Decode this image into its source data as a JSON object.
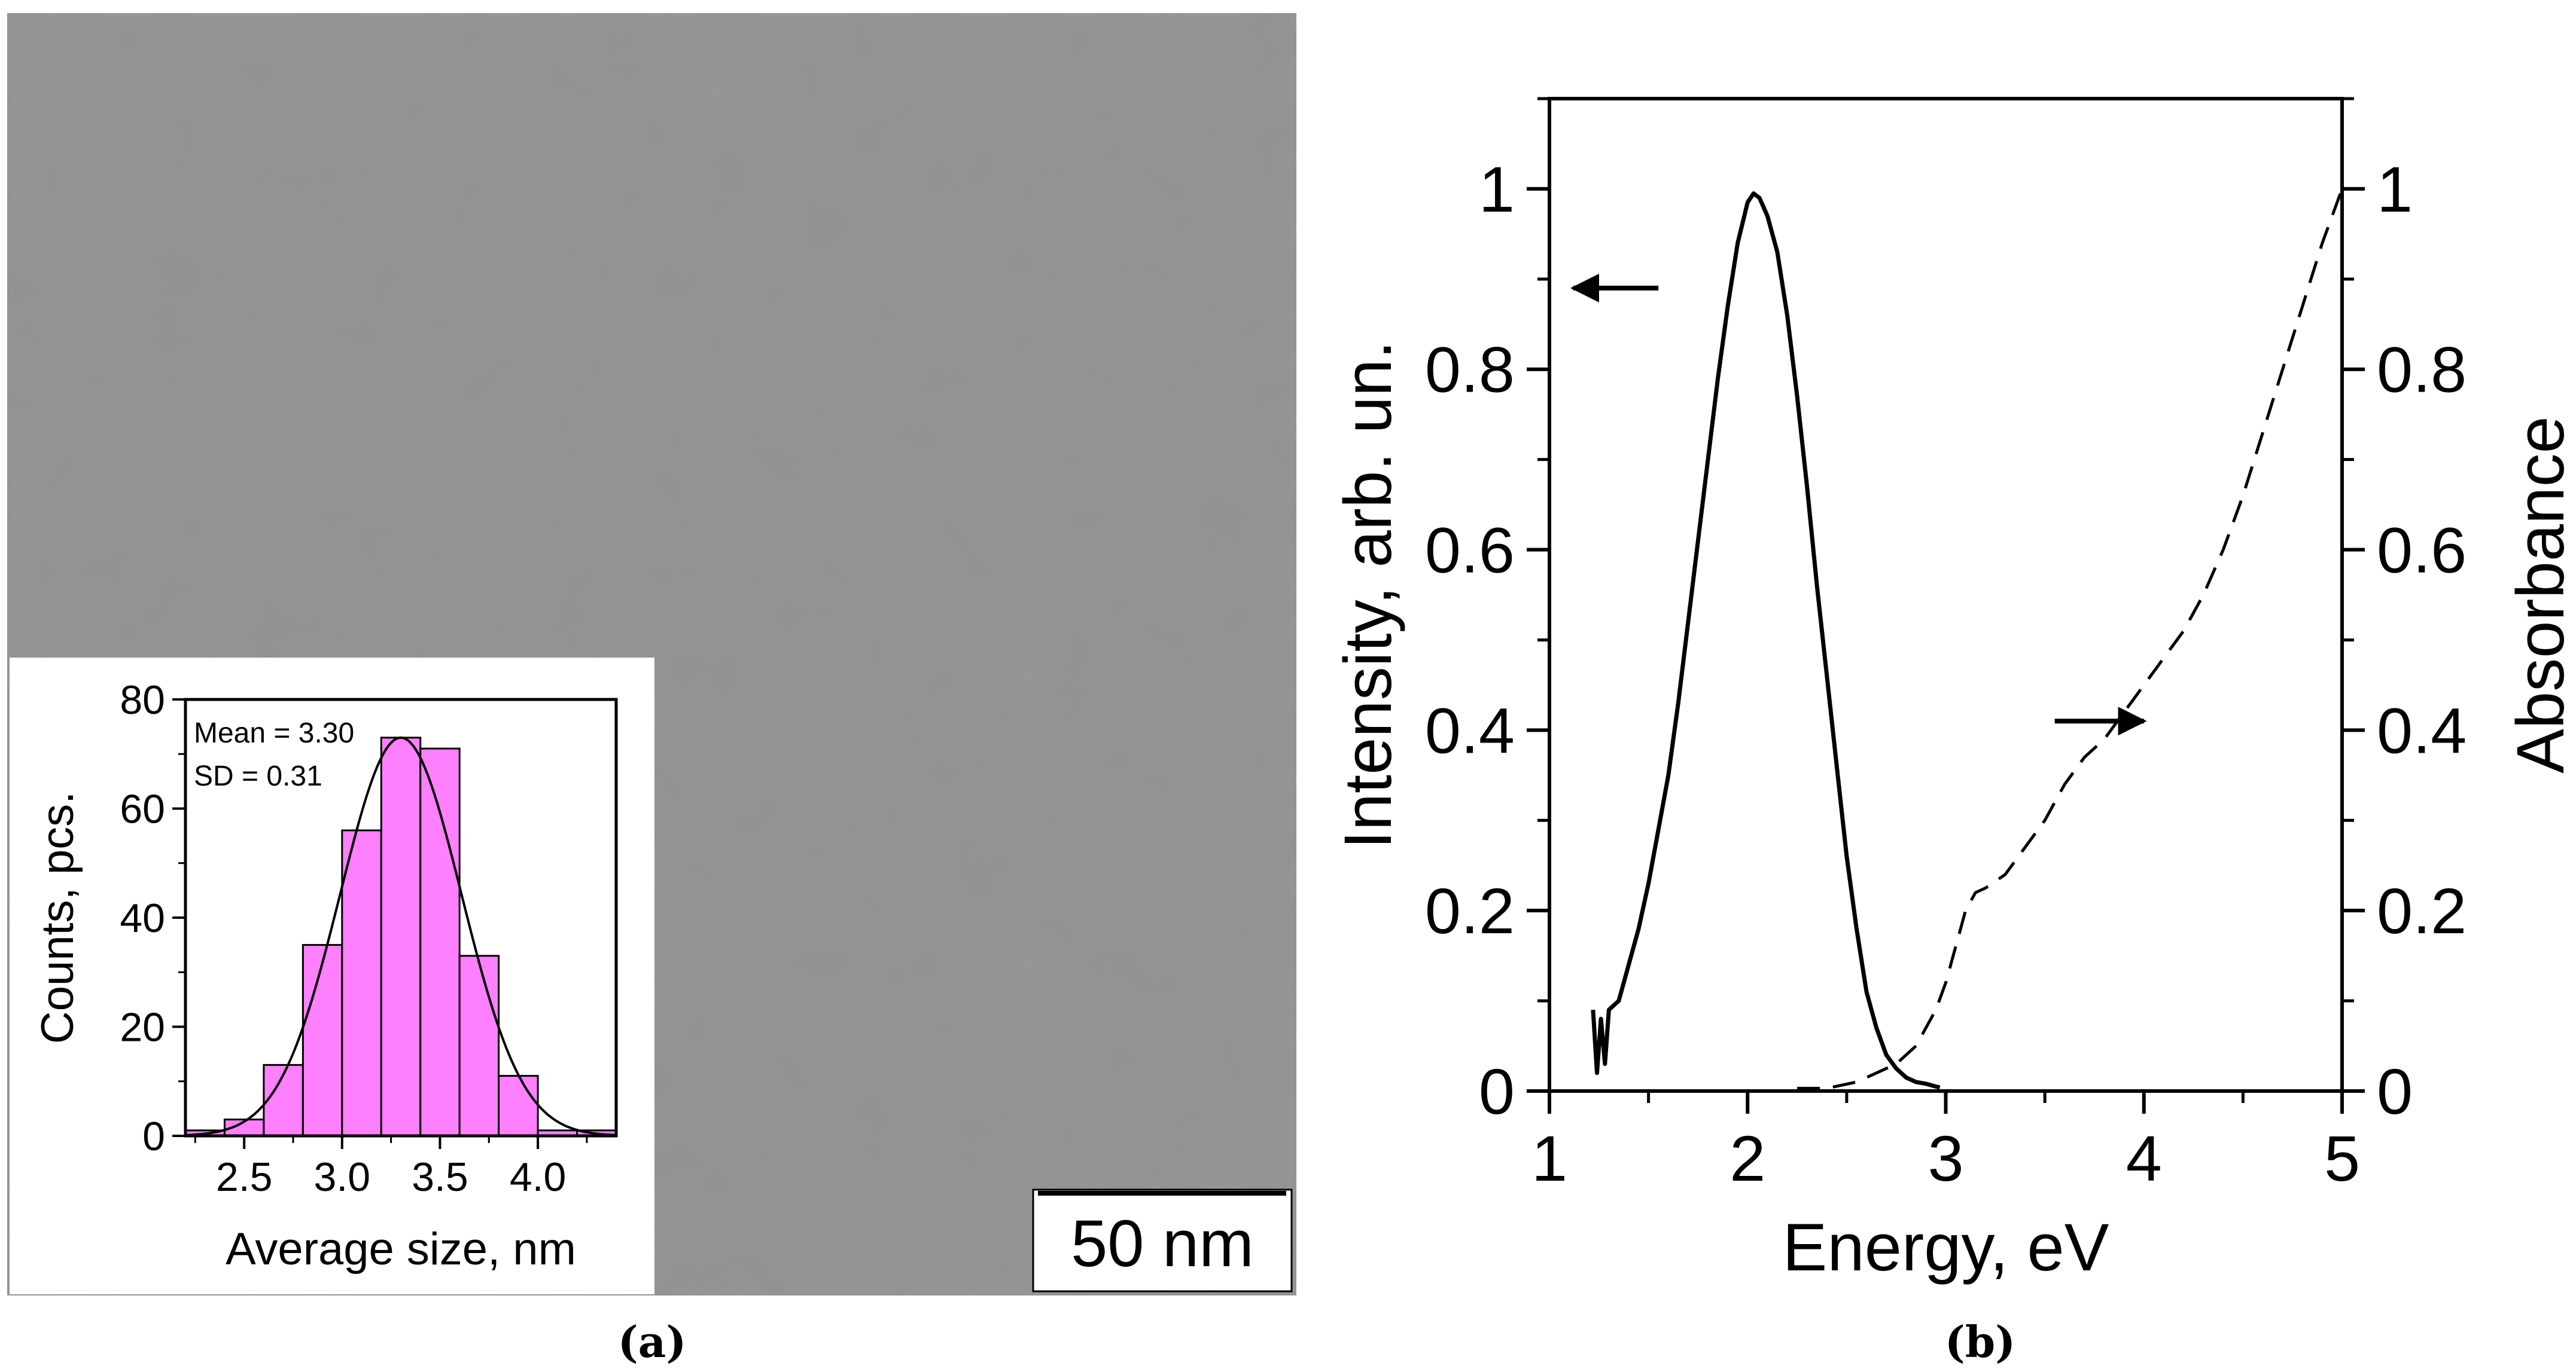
{
  "panels": {
    "a_caption": "(a)",
    "b_caption": "(b)"
  },
  "micrograph": {
    "scale_bar_label": "50 nm"
  },
  "chart_data": [
    {
      "type": "bar",
      "xlabel": "Average size, nm",
      "ylabel": "Counts, pcs.",
      "annotation": [
        "Mean = 3.30",
        "SD = 0.31"
      ],
      "bar_color": "#ff80ff",
      "bin_width": 0.2,
      "bins": [
        {
          "x": 2.3,
          "count": 1
        },
        {
          "x": 2.5,
          "count": 3
        },
        {
          "x": 2.7,
          "count": 13
        },
        {
          "x": 2.9,
          "count": 35
        },
        {
          "x": 3.1,
          "count": 56
        },
        {
          "x": 3.3,
          "count": 73
        },
        {
          "x": 3.5,
          "count": 71
        },
        {
          "x": 3.7,
          "count": 33
        },
        {
          "x": 3.9,
          "count": 11
        },
        {
          "x": 4.1,
          "count": 1
        },
        {
          "x": 4.3,
          "count": 1
        }
      ],
      "fit": {
        "type": "gaussian",
        "mean": 3.3,
        "sd": 0.31,
        "peak": 73
      },
      "xlim": [
        2.2,
        4.4
      ],
      "ylim": [
        0,
        80
      ],
      "xticks": [
        "2.5",
        "3.0",
        "3.5",
        "4.0"
      ],
      "yticks": [
        "0",
        "20",
        "40",
        "60",
        "80"
      ]
    },
    {
      "type": "line",
      "xlabel": "Energy, eV",
      "ylabel": "Intensity, arb. un.",
      "y2label": "Absorbance",
      "xlim": [
        1,
        5
      ],
      "ylim": [
        0,
        1.1
      ],
      "y2lim": [
        0,
        1.1
      ],
      "xticks": [
        "1",
        "2",
        "3",
        "4",
        "5"
      ],
      "yticks": [
        "0",
        "0.2",
        "0.4",
        "0.6",
        "0.8",
        "1"
      ],
      "y2ticks": [
        "0",
        "0.2",
        "0.4",
        "0.6",
        "0.8",
        "1"
      ],
      "series": [
        {
          "style": "solid",
          "axis": "left",
          "x": [
            1.22,
            1.24,
            1.26,
            1.28,
            1.3,
            1.35,
            1.4,
            1.45,
            1.5,
            1.55,
            1.6,
            1.65,
            1.7,
            1.75,
            1.8,
            1.85,
            1.9,
            1.95,
            2.0,
            2.03,
            2.06,
            2.1,
            2.15,
            2.2,
            2.25,
            2.3,
            2.35,
            2.4,
            2.45,
            2.5,
            2.55,
            2.6,
            2.65,
            2.7,
            2.75,
            2.8,
            2.85,
            2.9,
            2.95,
            2.97
          ],
          "y": [
            0.09,
            0.02,
            0.08,
            0.03,
            0.09,
            0.1,
            0.14,
            0.18,
            0.23,
            0.29,
            0.35,
            0.43,
            0.52,
            0.61,
            0.7,
            0.79,
            0.87,
            0.94,
            0.985,
            0.995,
            0.99,
            0.97,
            0.93,
            0.86,
            0.77,
            0.67,
            0.56,
            0.46,
            0.36,
            0.26,
            0.18,
            0.11,
            0.07,
            0.04,
            0.025,
            0.015,
            0.01,
            0.008,
            0.005,
            0.004
          ]
        },
        {
          "style": "dashed",
          "axis": "right",
          "x": [
            2.25,
            2.4,
            2.55,
            2.65,
            2.75,
            2.85,
            2.95,
            3.0,
            3.05,
            3.1,
            3.15,
            3.2,
            3.3,
            3.4,
            3.5,
            3.6,
            3.7,
            3.8,
            3.9,
            4.0,
            4.1,
            4.2,
            4.3,
            4.4,
            4.5,
            4.6,
            4.7,
            4.8,
            4.9,
            5.0
          ],
          "y": [
            0.003,
            0.003,
            0.01,
            0.02,
            0.03,
            0.05,
            0.09,
            0.12,
            0.16,
            0.2,
            0.22,
            0.225,
            0.24,
            0.27,
            0.3,
            0.34,
            0.37,
            0.39,
            0.42,
            0.45,
            0.48,
            0.51,
            0.55,
            0.6,
            0.66,
            0.73,
            0.8,
            0.87,
            0.94,
            1.0
          ]
        }
      ],
      "arrows": [
        {
          "direction": "left",
          "x_start": 1.55,
          "x_end": 1.12,
          "y": 0.89,
          "axis": "left"
        },
        {
          "direction": "right",
          "x_start": 3.55,
          "x_end": 4.0,
          "y": 0.41,
          "axis": "right"
        }
      ]
    }
  ]
}
